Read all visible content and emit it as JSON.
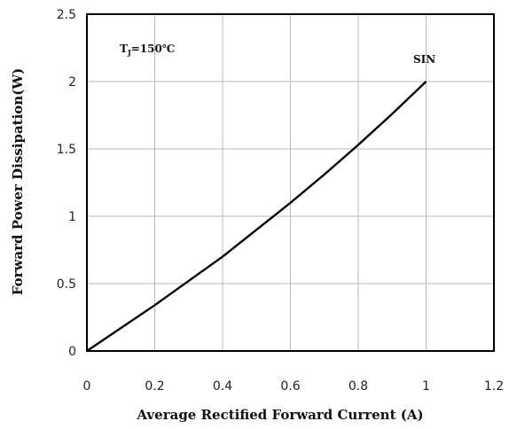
{
  "chart_data": {
    "type": "line",
    "xlabel": "Average Rectified Forward Current (A)",
    "ylabel": "Forward Power Dissipation(W)",
    "xlim": [
      0,
      1.2
    ],
    "ylim": [
      0,
      2.5
    ],
    "xticks": [
      0,
      0.2,
      0.4,
      0.6,
      0.8,
      1.0,
      1.2
    ],
    "xtick_labels": [
      "0",
      "0.2",
      "0.4",
      "0.6",
      "0.8",
      "1",
      "1.2"
    ],
    "yticks": [
      0,
      0.5,
      1.0,
      1.5,
      2.0,
      2.5
    ],
    "ytick_labels": [
      "0",
      "0.5",
      "1",
      "1.5",
      "2",
      "2.5"
    ],
    "grid": true,
    "annotations": {
      "condition": {
        "t": "T",
        "sub": "J",
        "rest": "=150℃"
      },
      "series_label": "SIN"
    },
    "series": [
      {
        "name": "SIN",
        "x": [
          0,
          0.1,
          0.2,
          0.3,
          0.4,
          0.5,
          0.6,
          0.7,
          0.8,
          0.9,
          1.0
        ],
        "y": [
          0,
          0.17,
          0.34,
          0.52,
          0.7,
          0.9,
          1.1,
          1.31,
          1.53,
          1.76,
          2.0
        ]
      }
    ]
  }
}
